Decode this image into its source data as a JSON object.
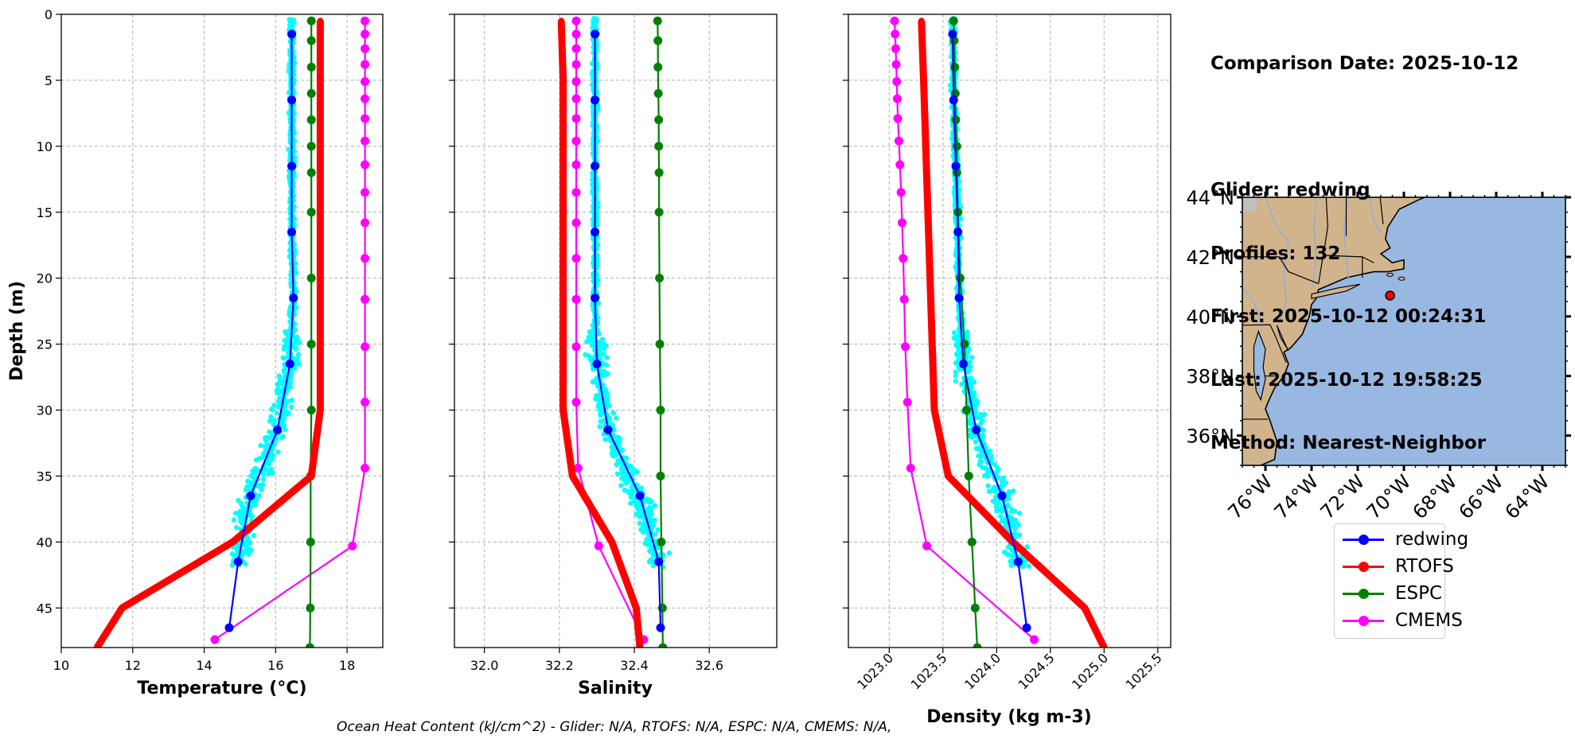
{
  "info": {
    "comparison_date": "Comparison Date: 2025-10-12",
    "glider": "Glider: redwing",
    "profiles": "Profiles: 132",
    "first": "First: 2025-10-12 00:24:31",
    "last": "Last: 2025-10-12 19:58:25",
    "method": "Method: Nearest-Neighbor"
  },
  "footer": "Ocean Heat Content (kJ/cm^2) - Glider: N/A,  RTOFS: N/A,  ESPC: N/A,  CMEMS: N/A,",
  "colors": {
    "redwing": "#0000ff",
    "RTOFS": "#ff0000",
    "ESPC": "#008000",
    "CMEMS": "#ff00ff",
    "scatter": "#00ffff",
    "land": "#d2b48c",
    "ocean": "#99b8e1"
  },
  "legend": [
    {
      "name": "redwing",
      "color": "#0000ff"
    },
    {
      "name": "RTOFS",
      "color": "#ff0000"
    },
    {
      "name": "ESPC",
      "color": "#008000"
    },
    {
      "name": "CMEMS",
      "color": "#ff00ff"
    }
  ],
  "chart_data": [
    {
      "type": "line",
      "panel": "temperature",
      "ylabel": "Depth (m)",
      "xlabel": "Temperature (°C)",
      "xlim": [
        10,
        19
      ],
      "ylim": [
        48,
        0
      ],
      "xticks": [
        "10",
        "12",
        "14",
        "16",
        "18"
      ],
      "yticks": [
        "0",
        "5",
        "10",
        "15",
        "20",
        "25",
        "30",
        "35",
        "40",
        "45"
      ],
      "grid": true,
      "series": [
        {
          "name": "redwing",
          "depth": [
            1.5,
            6.5,
            11.5,
            16.5,
            21.5,
            26.5,
            31.5,
            36.5,
            41.5,
            46.5
          ],
          "values": [
            16.45,
            16.45,
            16.45,
            16.45,
            16.5,
            16.4,
            16.05,
            15.3,
            14.95,
            14.7
          ]
        },
        {
          "name": "RTOFS",
          "depth": [
            0.5,
            5,
            10,
            15,
            20,
            25,
            30,
            35,
            40,
            45,
            48
          ],
          "values": [
            17.25,
            17.25,
            17.25,
            17.25,
            17.25,
            17.25,
            17.25,
            17.0,
            14.8,
            11.7,
            11.0
          ]
        },
        {
          "name": "ESPC",
          "depth": [
            0.5,
            2,
            4,
            6,
            8,
            10,
            12,
            15,
            20,
            25,
            30,
            35,
            40,
            45,
            48
          ],
          "values": [
            17.0,
            17.0,
            17.0,
            17.0,
            17.0,
            17.0,
            17.0,
            17.0,
            17.0,
            17.0,
            17.0,
            16.98,
            16.98,
            16.97,
            16.96
          ]
        },
        {
          "name": "CMEMS",
          "depth": [
            0.5,
            1.5,
            2.6,
            3.8,
            5.1,
            6.4,
            7.9,
            9.6,
            11.4,
            13.5,
            15.8,
            18.5,
            21.6,
            25.2,
            29.4,
            34.4,
            40.3,
            47.4
          ],
          "values": [
            18.5,
            18.5,
            18.5,
            18.5,
            18.5,
            18.5,
            18.5,
            18.5,
            18.5,
            18.5,
            18.5,
            18.5,
            18.5,
            18.5,
            18.5,
            18.5,
            18.15,
            14.3
          ]
        }
      ]
    },
    {
      "type": "line",
      "panel": "salinity",
      "xlabel": "Salinity",
      "xlim": [
        31.92,
        32.78
      ],
      "ylim": [
        48,
        0
      ],
      "xticks": [
        "32.0",
        "32.2",
        "32.4",
        "32.6"
      ],
      "grid": true,
      "series": [
        {
          "name": "redwing",
          "depth": [
            1.5,
            6.5,
            11.5,
            16.5,
            21.5,
            26.5,
            31.5,
            36.5,
            41.5,
            46.5
          ],
          "values": [
            32.295,
            32.295,
            32.295,
            32.295,
            32.295,
            32.3,
            32.33,
            32.415,
            32.465,
            32.47
          ]
        },
        {
          "name": "RTOFS",
          "depth": [
            0.5,
            5,
            10,
            15,
            20,
            25,
            30,
            35,
            40,
            45,
            48
          ],
          "values": [
            32.205,
            32.21,
            32.21,
            32.21,
            32.21,
            32.21,
            32.21,
            32.235,
            32.34,
            32.405,
            32.415
          ]
        },
        {
          "name": "ESPC",
          "depth": [
            0.5,
            2,
            4,
            6,
            8,
            10,
            12,
            15,
            20,
            25,
            30,
            35,
            40,
            45,
            48
          ],
          "values": [
            32.462,
            32.463,
            32.463,
            32.464,
            32.465,
            32.465,
            32.466,
            32.466,
            32.467,
            32.468,
            32.47,
            32.47,
            32.472,
            32.475,
            32.476
          ]
        },
        {
          "name": "CMEMS",
          "depth": [
            0.5,
            1.5,
            2.6,
            3.8,
            5.1,
            6.4,
            7.9,
            9.6,
            11.4,
            13.5,
            15.8,
            18.5,
            21.6,
            25.2,
            29.4,
            34.4,
            40.3,
            47.4
          ],
          "values": [
            32.245,
            32.245,
            32.245,
            32.245,
            32.245,
            32.245,
            32.245,
            32.245,
            32.245,
            32.245,
            32.245,
            32.245,
            32.245,
            32.245,
            32.245,
            32.25,
            32.305,
            32.425
          ]
        }
      ]
    },
    {
      "type": "line",
      "panel": "density",
      "xlabel": "Density (kg m-3)",
      "xlim": [
        1022.62,
        1025.62
      ],
      "ylim": [
        48,
        0
      ],
      "xticks": [
        "1023.0",
        "1023.5",
        "1024.0",
        "1024.5",
        "1025.0",
        "1025.5"
      ],
      "grid": true,
      "series": [
        {
          "name": "redwing",
          "depth": [
            1.5,
            6.5,
            11.5,
            16.5,
            21.5,
            26.5,
            31.5,
            36.5,
            41.5,
            46.5
          ],
          "values": [
            1023.59,
            1023.6,
            1023.62,
            1023.64,
            1023.65,
            1023.69,
            1023.81,
            1024.05,
            1024.2,
            1024.28
          ]
        },
        {
          "name": "RTOFS",
          "depth": [
            0.5,
            5,
            10,
            15,
            20,
            25,
            30,
            35,
            40,
            45,
            48
          ],
          "values": [
            1023.3,
            1023.32,
            1023.34,
            1023.36,
            1023.38,
            1023.4,
            1023.42,
            1023.55,
            1024.15,
            1024.82,
            1025.0
          ]
        },
        {
          "name": "ESPC",
          "depth": [
            0.5,
            2,
            4,
            6,
            8,
            10,
            12,
            15,
            20,
            25,
            30,
            35,
            40,
            45,
            48
          ],
          "values": [
            1023.6,
            1023.605,
            1023.61,
            1023.615,
            1023.62,
            1023.63,
            1023.63,
            1023.64,
            1023.66,
            1023.7,
            1023.72,
            1023.74,
            1023.77,
            1023.8,
            1023.82
          ]
        },
        {
          "name": "CMEMS",
          "depth": [
            0.5,
            1.5,
            2.6,
            3.8,
            5.1,
            6.4,
            7.9,
            9.6,
            11.4,
            13.5,
            15.8,
            18.5,
            21.6,
            25.2,
            29.4,
            34.4,
            40.3,
            47.4
          ],
          "values": [
            1023.05,
            1023.055,
            1023.06,
            1023.065,
            1023.07,
            1023.075,
            1023.08,
            1023.09,
            1023.1,
            1023.11,
            1023.12,
            1023.13,
            1023.14,
            1023.15,
            1023.17,
            1023.2,
            1023.35,
            1024.35
          ]
        }
      ]
    },
    {
      "type": "map",
      "panel": "location",
      "lon_range": [
        -77,
        -63
      ],
      "lat_range": [
        35,
        44
      ],
      "xticks": [
        "76°W",
        "74°W",
        "72°W",
        "70°W",
        "68°W",
        "66°W",
        "64°W"
      ],
      "yticks": [
        "36°N",
        "38°N",
        "40°N",
        "42°N",
        "44°N"
      ],
      "glider_position": {
        "lon": -70.6,
        "lat": 40.7
      }
    }
  ]
}
